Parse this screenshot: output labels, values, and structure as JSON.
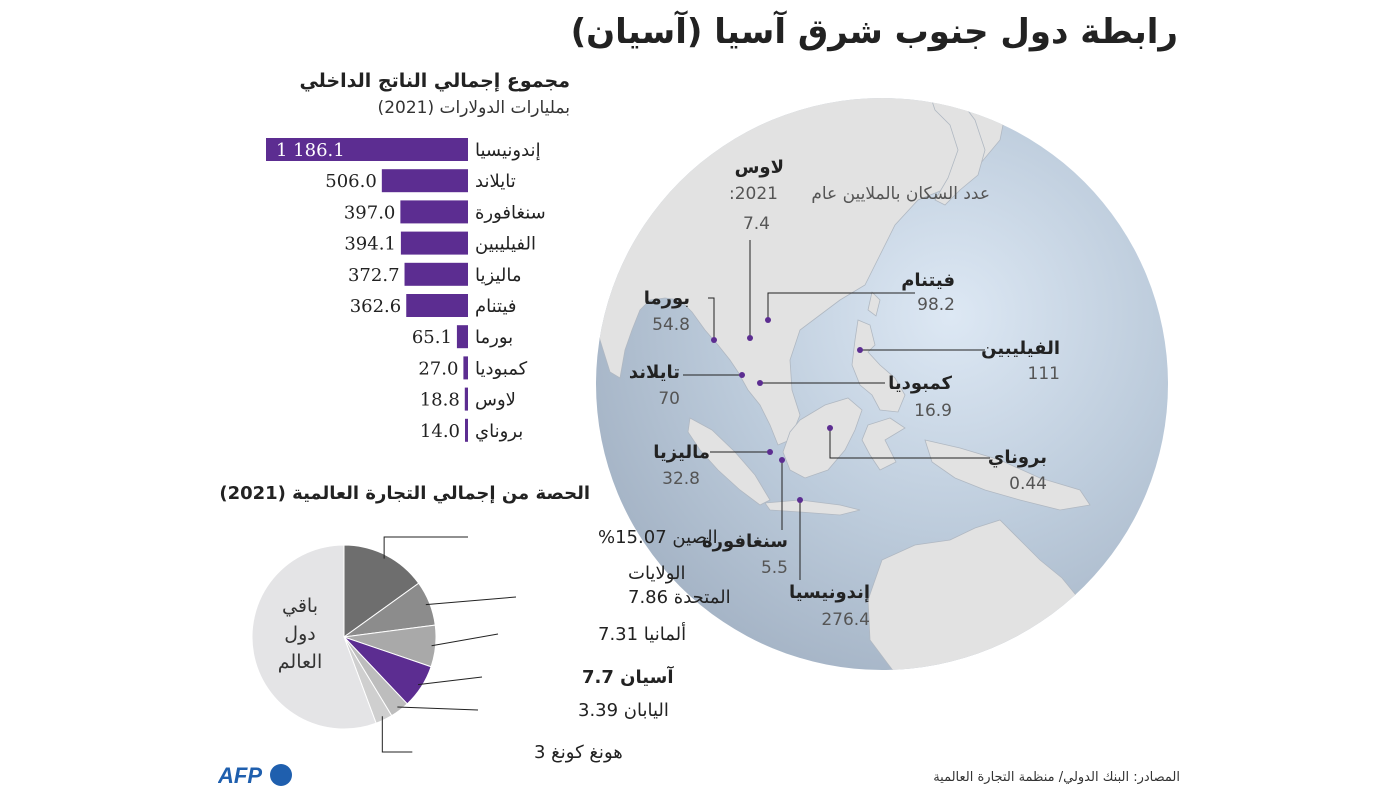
{
  "title": "رابطة دول جنوب شرق آسيا (آسيان)",
  "gdp": {
    "title": "مجموع إجمالي الناتج الداخلي",
    "subtitle": "بمليارات الدولارات (2021)"
  },
  "trade": {
    "title": "الحصة من إجمالي التجارة العالمية (2021)"
  },
  "population": {
    "caption_line1": "عدد السكان بالملايين عام",
    "caption_line2": "2021:"
  },
  "source": "المصادر: البنك الدولي/ منظمة التجارة العالمية",
  "logo": "AFP",
  "colors": {
    "bar": "#5c2d91",
    "ocean": "#b7c6d6",
    "land": "#e3e3e3",
    "pie_china": "#6e6e6e",
    "pie_usa": "#8c8c8c",
    "pie_germany": "#a9a9a9",
    "pie_asean": "#5c2d91",
    "pie_japan": "#bdbdbd",
    "pie_hongkong": "#cfcfcf",
    "pie_rest": "#e4e4e6",
    "afp_blue": "#1f5fae"
  },
  "chart_data": [
    {
      "type": "bar",
      "orientation": "horizontal",
      "categories": [
        "إندونيسيا",
        "تايلاند",
        "سنغافورة",
        "الفيليبين",
        "ماليزيا",
        "فيتنام",
        "بورما",
        "كمبوديا",
        "لاوس",
        "بروناي"
      ],
      "values": [
        1186.1,
        506.0,
        397.0,
        394.1,
        372.7,
        362.6,
        65.1,
        27.0,
        18.8,
        14.0
      ],
      "value_labels": [
        "1 186.1",
        "506.0",
        "397.0",
        "394.1",
        "372.7",
        "362.6",
        "65.1",
        "27.0",
        "18.8",
        "14.0"
      ],
      "title": "مجموع إجمالي الناتج الداخلي",
      "subtitle": "بمليارات الدولارات (2021)"
    },
    {
      "type": "pie",
      "title": "الحصة من إجمالي التجارة العالمية (2021)",
      "slices": [
        {
          "lines": [
            "الصين 15.07%"
          ],
          "value": 15.07,
          "bold": false
        },
        {
          "lines": [
            "الولايات",
            "المتحدة 7.86"
          ],
          "value": 7.86,
          "bold": false
        },
        {
          "lines": [
            "ألمانيا 7.31"
          ],
          "value": 7.31,
          "bold": false
        },
        {
          "lines": [
            "آسيان 7.7"
          ],
          "value": 7.7,
          "bold": true
        },
        {
          "lines": [
            "اليابان 3.39"
          ],
          "value": 3.39,
          "bold": false
        },
        {
          "lines": [
            "هونغ كونغ  3"
          ],
          "value": 3.0,
          "bold": false
        },
        {
          "lines": [
            "باقي",
            "دول",
            "العالم"
          ],
          "value": 55.67,
          "bold": false
        }
      ]
    }
  ],
  "countries": [
    {
      "name": "لاوس",
      "population": "7.4"
    },
    {
      "name": "فيتنام",
      "population": "98.2"
    },
    {
      "name": "بورما",
      "population": "54.8"
    },
    {
      "name": "الفيليبين",
      "population": "111"
    },
    {
      "name": "تايلاند",
      "population": "70"
    },
    {
      "name": "كمبوديا",
      "population": "16.9"
    },
    {
      "name": "بروناي",
      "population": "0.44"
    },
    {
      "name": "ماليزيا",
      "population": "32.8"
    },
    {
      "name": "سنغافورة",
      "population": "5.5"
    },
    {
      "name": "إندونيسيا",
      "population": "276.4"
    }
  ]
}
